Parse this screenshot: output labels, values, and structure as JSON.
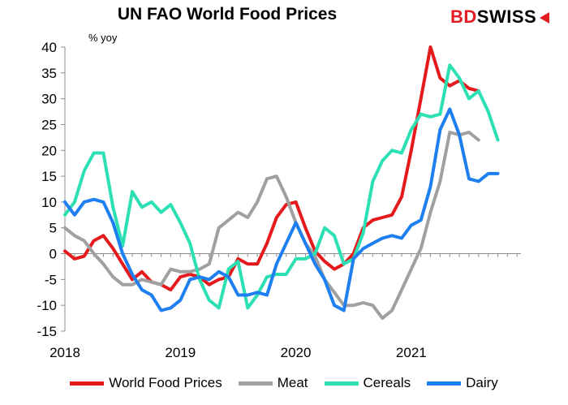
{
  "title": "UN FAO World Food Prices",
  "brand": {
    "part1": "BD",
    "part2": "SWISS"
  },
  "colors": {
    "red": "#e41a1c",
    "gray": "#a0a0a0",
    "teal": "#2de0b4",
    "blue": "#1e7ff0"
  },
  "chart_data": {
    "type": "line",
    "title": "UN FAO World Food Prices",
    "ylabel": "% yoy",
    "ylim": [
      -15,
      40
    ],
    "yticks": [
      40,
      35,
      30,
      25,
      20,
      15,
      10,
      5,
      0,
      -5,
      -10,
      -15
    ],
    "xlim": [
      2018.0,
      2021.95
    ],
    "xticks": [
      {
        "value": 2018.0,
        "label": "2018"
      },
      {
        "value": 2019.0,
        "label": "2019"
      },
      {
        "value": 2020.0,
        "label": "2020"
      },
      {
        "value": 2021.0,
        "label": "2021"
      }
    ],
    "series": [
      {
        "name": "World Food Prices",
        "color": "#e41a1c",
        "values": [
          0.5,
          -1,
          -0.5,
          2.5,
          3.5,
          1,
          -2,
          -5,
          -3.5,
          -5.5,
          -6,
          -7,
          -4.5,
          -4,
          -4.5,
          -6,
          -5,
          -4.5,
          -1,
          -2,
          -2,
          2,
          7,
          9.5,
          10,
          5,
          0.5,
          -1.5,
          -3,
          -2,
          0,
          5,
          6.5,
          7,
          7.5,
          11,
          20,
          30,
          40,
          34,
          32.5,
          33.5,
          32,
          31.5
        ]
      },
      {
        "name": "Meat",
        "color": "#a0a0a0",
        "values": [
          5,
          3.5,
          2.5,
          0,
          -2,
          -4.5,
          -6,
          -6,
          -5,
          -5.5,
          -6,
          -3,
          -3.5,
          -3.5,
          -3,
          -2,
          5,
          6.5,
          8,
          7,
          10,
          14.5,
          15,
          11,
          6,
          2,
          -0.5,
          -5,
          -7.5,
          -10,
          -10,
          -9.5,
          -10,
          -12.5,
          -11,
          -7,
          -3,
          1,
          8,
          14,
          23.5,
          23,
          23.5,
          22
        ]
      },
      {
        "name": "Cereals",
        "color": "#2de0b4",
        "values": [
          7.5,
          10,
          16,
          19.5,
          19.5,
          9,
          1.5,
          12,
          9,
          10,
          8,
          9.5,
          6,
          2,
          -5,
          -9,
          -10.5,
          -3,
          -1.5,
          -10.5,
          -8,
          -4.5,
          -4,
          -4,
          -1,
          -1,
          0,
          5,
          3.5,
          -2,
          -1,
          4,
          14,
          18,
          20,
          19.5,
          24,
          27,
          26.5,
          27,
          36.5,
          34,
          30,
          31.5,
          27.5,
          22
        ]
      },
      {
        "name": "Dairy",
        "color": "#1e7ff0",
        "values": [
          10,
          7.5,
          10,
          10.5,
          10,
          6,
          0,
          -4,
          -7,
          -8,
          -11,
          -10.5,
          -9,
          -5,
          -4.5,
          -5,
          -3.5,
          -4.5,
          -8,
          -8,
          -7.5,
          -8,
          -2,
          2,
          6,
          2,
          -2,
          -5,
          -10,
          -11,
          -1,
          1,
          2,
          3,
          3.5,
          3,
          5.5,
          6.5,
          13,
          24,
          28,
          23,
          14.5,
          14,
          15.5,
          15.5
        ]
      }
    ]
  }
}
